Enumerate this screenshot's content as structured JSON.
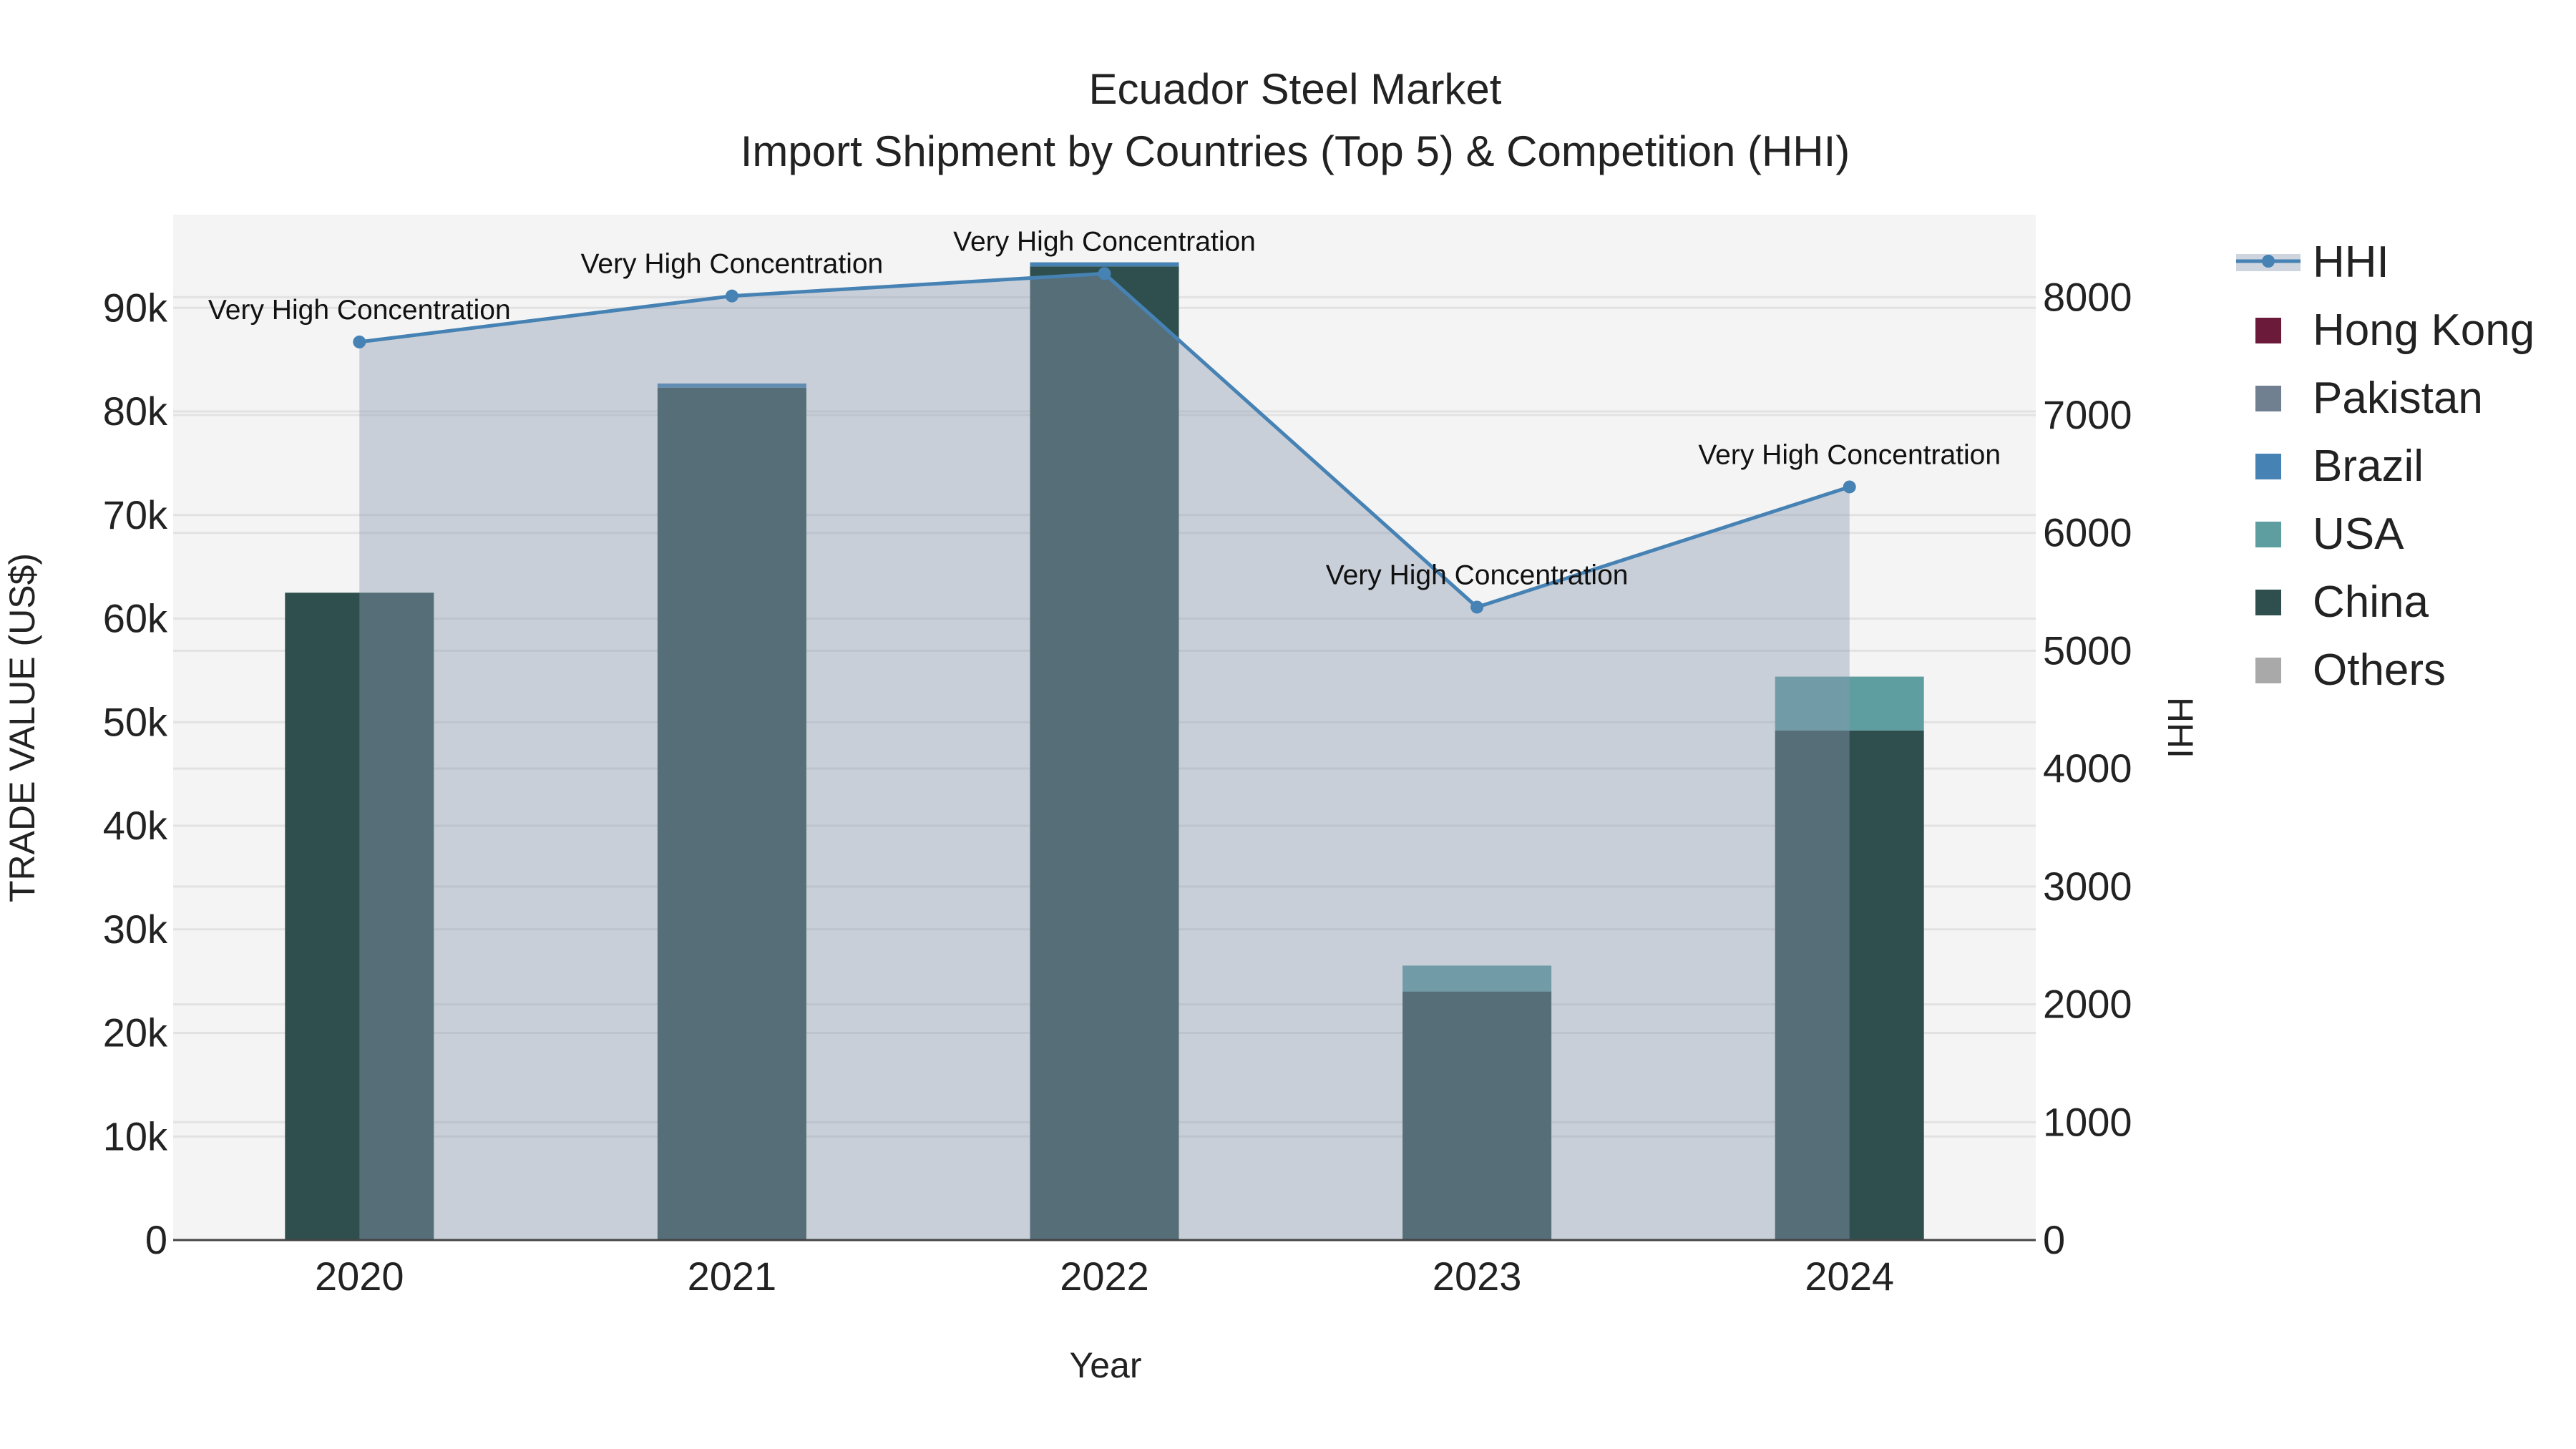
{
  "chart_data": {
    "type": "bar",
    "title": "Ecuador Steel Market",
    "subtitle": "Import Shipment by Countries (Top 5) & Competition (HHI)",
    "xlabel": "Year",
    "ylabel": "TRADE VALUE (US$)",
    "y2label": "HHI",
    "categories": [
      "2020",
      "2021",
      "2022",
      "2023",
      "2024"
    ],
    "ylim": [
      0,
      99000
    ],
    "y2lim": [
      0,
      8700
    ],
    "yticks": [
      0,
      10000,
      20000,
      30000,
      40000,
      50000,
      60000,
      70000,
      80000,
      90000
    ],
    "ytick_labels": [
      "0",
      "10k",
      "20k",
      "30k",
      "40k",
      "50k",
      "60k",
      "70k",
      "80k",
      "90k"
    ],
    "y2ticks": [
      0,
      1000,
      2000,
      3000,
      4000,
      5000,
      6000,
      7000,
      8000
    ],
    "y2tick_labels": [
      "0",
      "1000",
      "2000",
      "3000",
      "4000",
      "5000",
      "6000",
      "7000",
      "8000"
    ],
    "series": [
      {
        "name": "Hong Kong",
        "color": "#6b1a3a",
        "values": [
          0,
          0,
          0,
          0,
          0
        ]
      },
      {
        "name": "Pakistan",
        "color": "#708090",
        "values": [
          0,
          0,
          0,
          0,
          0
        ]
      },
      {
        "name": "Brazil",
        "color": "#4682b4",
        "values": [
          0,
          400,
          400,
          0,
          0
        ]
      },
      {
        "name": "USA",
        "color": "#5f9ea0",
        "values": [
          0,
          0,
          0,
          2500,
          5200
        ]
      },
      {
        "name": "China",
        "color": "#2f4f4f",
        "values": [
          62500,
          82300,
          94000,
          24000,
          49200
        ]
      },
      {
        "name": "Others",
        "color": "#a9a9a9",
        "values": [
          0,
          0,
          0,
          0,
          0
        ]
      }
    ],
    "hhi": {
      "name": "HHI",
      "color": "#4682b4",
      "values": [
        7620,
        8010,
        8200,
        5370,
        6390
      ],
      "annotations": [
        "Very High Concentration",
        "Very High Concentration",
        "Very High Concentration",
        "Very High Concentration",
        "Very High Concentration"
      ]
    },
    "legend_position": "right"
  }
}
